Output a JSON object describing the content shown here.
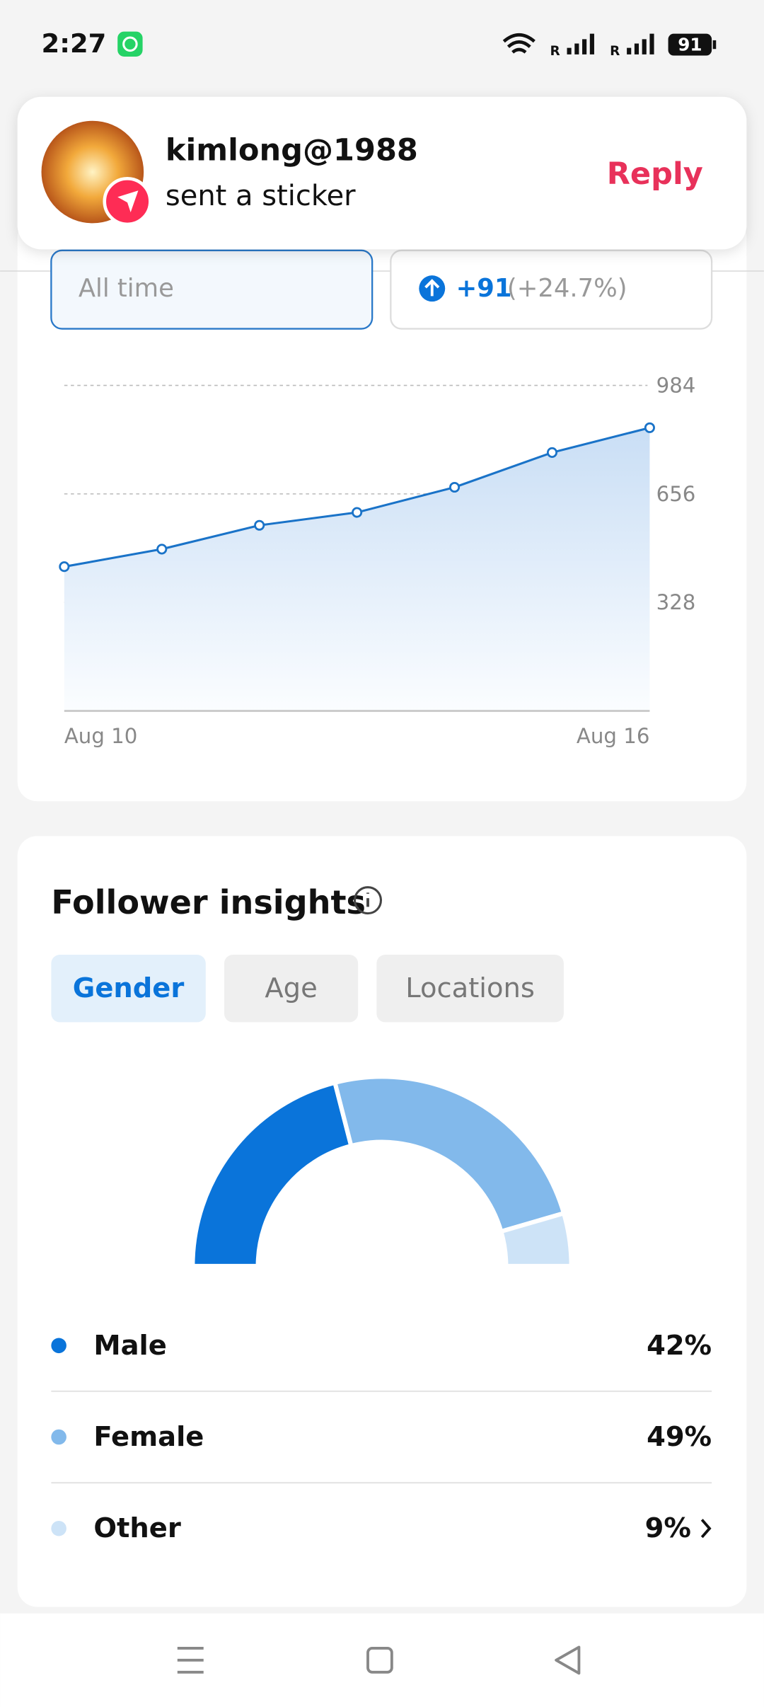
{
  "status_bar": {
    "time": "2:27",
    "sim_labels": [
      "R",
      "R"
    ],
    "battery": "91"
  },
  "notification": {
    "user": "kimlong@1988",
    "message": "sent a sticker",
    "action": "Reply"
  },
  "filter": {
    "period": "All time",
    "change": "+91",
    "change_pct": "(+24.7%)"
  },
  "followers_chart": {
    "type": "line",
    "x": [
      "Aug 10",
      null,
      null,
      null,
      null,
      null,
      "Aug 16"
    ],
    "values": [
      436,
      489,
      561,
      600,
      676,
      781,
      856
    ],
    "ylim": [
      0,
      984
    ],
    "yticks": [
      328,
      656,
      984
    ],
    "color": "#1a73c8",
    "grid": true
  },
  "insights": {
    "title": "Follower insights",
    "tabs": [
      "Gender",
      "Age",
      "Locations"
    ],
    "gender_chart": {
      "type": "pie",
      "categories": [
        "Male",
        "Female",
        "Other"
      ],
      "values": [
        42,
        49,
        9
      ],
      "value_labels": [
        "42%",
        "49%",
        "9%"
      ],
      "colors": [
        "#0a74da",
        "#82b9eb",
        "#cde3f7"
      ]
    }
  }
}
